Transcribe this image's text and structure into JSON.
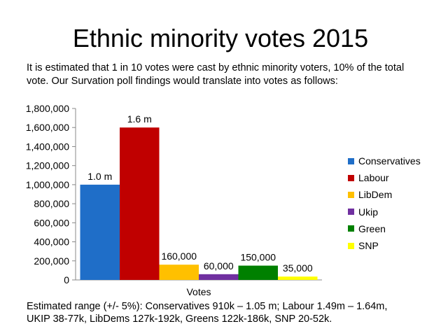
{
  "page": {
    "title": "Ethnic minority votes 2015",
    "intro": "It is estimated that 1 in 10 votes were cast by ethnic minority voters, 10% of the total vote. Our Survation poll findings would translate into votes as follows:",
    "footnote_line1": "Estimated range (+/- 5%): Conservatives 910k – 1.05 m; Labour 1.49m – 1.64m,",
    "footnote_line2": "UKIP 38-77k, LibDems 127k-192k, Greens 122k-186k, SNP 20-52k."
  },
  "chart_data": {
    "type": "bar",
    "title": "",
    "xlabel": "Votes",
    "ylabel": "",
    "ylim": [
      0,
      1800000
    ],
    "y_ticks": [
      "0",
      "200,000",
      "400,000",
      "600,000",
      "800,000",
      "1,000,000",
      "1,200,000",
      "1,400,000",
      "1,600,000",
      "1,800,000"
    ],
    "grid": false,
    "legend_position": "right",
    "series": [
      {
        "name": "Conservatives",
        "value": 1000000,
        "label": "1.0 m",
        "color": "#1f6ec8"
      },
      {
        "name": "Labour",
        "value": 1600000,
        "label": "1.6 m",
        "color": "#c00000"
      },
      {
        "name": "LibDem",
        "value": 160000,
        "label": "160,000",
        "color": "#ffc000"
      },
      {
        "name": "Ukip",
        "value": 60000,
        "label": "60,000",
        "color": "#7030a0"
      },
      {
        "name": "Green",
        "value": 150000,
        "label": "150,000",
        "color": "#008000"
      },
      {
        "name": "SNP",
        "value": 35000,
        "label": "35,000",
        "color": "#ffff00"
      }
    ]
  }
}
